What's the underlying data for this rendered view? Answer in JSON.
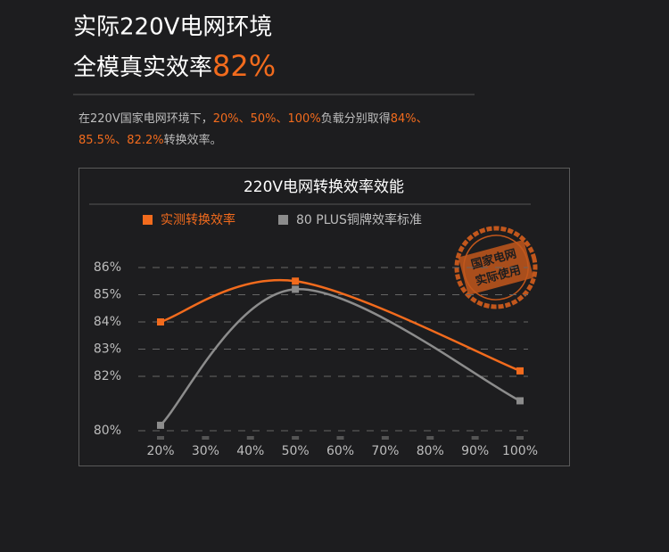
{
  "header": {
    "line1": "实际220V电网环境",
    "line2": "全模真实效率",
    "highlight": "82%"
  },
  "description": {
    "lines": [
      [
        {
          "text": "在220V国家电网环境下，",
          "accent": false
        },
        {
          "text": "20%、50%、100%",
          "accent": true
        },
        {
          "text": "负载分别取得",
          "accent": false
        },
        {
          "text": "84%、",
          "accent": true
        }
      ],
      [
        {
          "text": "85.5%、82.2%",
          "accent": true
        },
        {
          "text": "转换效率。",
          "accent": false
        }
      ]
    ]
  },
  "stamp": {
    "line1": "国家电网",
    "line2": "实际使用"
  },
  "chart_data": {
    "type": "line",
    "title": "220V电网转换效率效能",
    "x": [
      20,
      50,
      100
    ],
    "series": [
      {
        "name": "实测转换效率",
        "color": "#f26b1d",
        "values": [
          84,
          85.5,
          82.2
        ]
      },
      {
        "name": "80 PLUS铜牌效率标准",
        "color": "#8c8c8c",
        "values": [
          80.2,
          85.2,
          81.1
        ]
      }
    ],
    "xlim": [
      20,
      100
    ],
    "xticks": [
      {
        "value": 20,
        "label": "20%"
      },
      {
        "value": 30,
        "label": "30%"
      },
      {
        "value": 40,
        "label": "40%"
      },
      {
        "value": 50,
        "label": "50%"
      },
      {
        "value": 60,
        "label": "60%"
      },
      {
        "value": 70,
        "label": "70%"
      },
      {
        "value": 80,
        "label": "80%"
      },
      {
        "value": 90,
        "label": "90%"
      },
      {
        "value": 100,
        "label": "100%"
      }
    ],
    "ylim": [
      79.6,
      86.4
    ],
    "yticks": [
      {
        "value": 80,
        "label": "80%"
      },
      {
        "value": 82,
        "label": "82%"
      },
      {
        "value": 83,
        "label": "83%"
      },
      {
        "value": 84,
        "label": "84%"
      },
      {
        "value": 85,
        "label": "85%"
      },
      {
        "value": 86,
        "label": "86%"
      }
    ],
    "grid": true
  }
}
